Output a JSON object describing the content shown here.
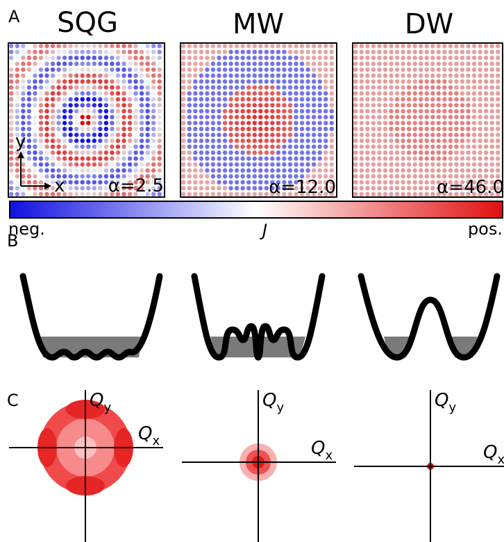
{
  "panel_labels": [
    "A",
    "B",
    "C"
  ],
  "panels": [
    {
      "title": "SQG",
      "alpha": "α=2.5"
    },
    {
      "title": "MW",
      "alpha": "α=12.0"
    },
    {
      "title": "DW",
      "alpha": "α=46.0"
    }
  ],
  "axes": {
    "x": "x",
    "y": "y"
  },
  "colorbar": {
    "neg": "neg.",
    "label": "J",
    "pos": "pos."
  },
  "q_axes": [
    {
      "qy": "Q",
      "qy_sub": "y",
      "qx": "Q",
      "qx_sub": "x"
    },
    {
      "qy": "Q",
      "qy_sub": "y",
      "qx": "Q",
      "qx_sub": "x"
    },
    {
      "qy": "Q",
      "qy_sub": "y",
      "qx": "Q",
      "qx_sub": "x"
    }
  ]
}
